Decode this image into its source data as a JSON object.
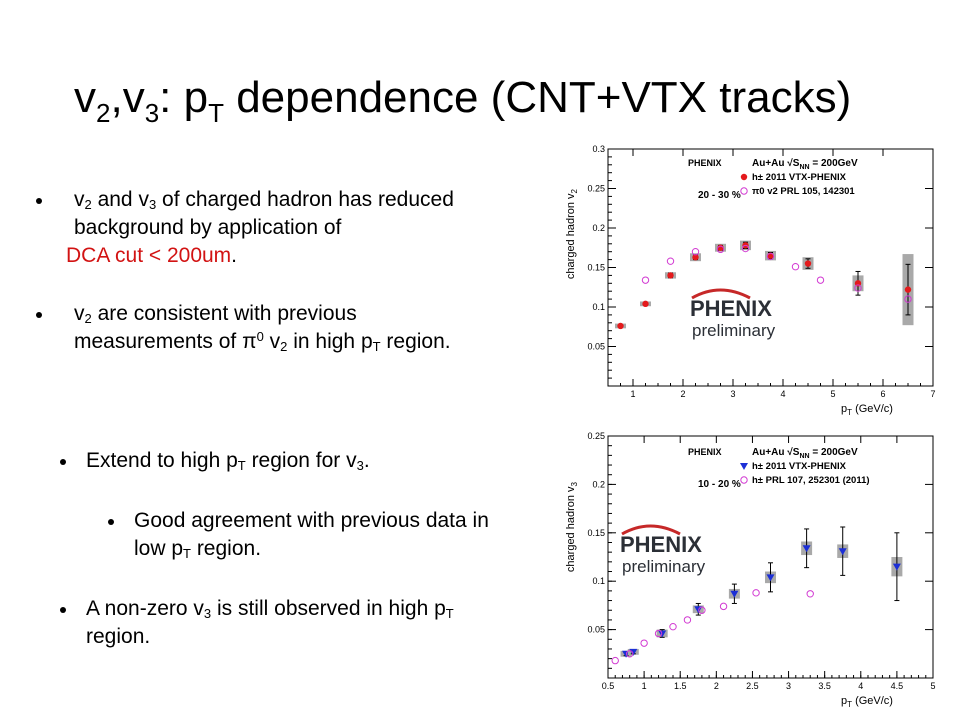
{
  "title": {
    "v_a": "v",
    "sub_a": "2",
    "comma": ",",
    "v_b": "v",
    "sub_b": "3",
    "colon": ": p",
    "sub_T": "T",
    "rest": " dependence (CNT+VTX  tracks)"
  },
  "bullets_top": {
    "b1": {
      "v": "v",
      "s1": "2",
      "t1": " and v",
      "s2": "3",
      "t2": " of charged hadron has reduced",
      "l2": "background by application of",
      "l3": "DCA cut < 200um",
      "period": "."
    },
    "b2": {
      "v": "v",
      "s1": "2",
      "t1": " are consistent with previous",
      "t2": "measurements of ",
      "pi": "π",
      "sup": "0",
      "t3": " v",
      "s2": "2",
      "t4": " in high p",
      "s3": "T",
      "t5": " region."
    }
  },
  "bullets_bottom": {
    "b3": {
      "t1": "Extend to high p",
      "s1": "T",
      "t2": " region for v",
      "s2": "3",
      "t3": "."
    },
    "b4": {
      "l1": "Good agreement with previous data in",
      "t1": "low p",
      "s1": "T",
      "t2": " region."
    },
    "b5": {
      "t1": "A non-zero v",
      "s1": "3",
      "t2": " is still observed in high p",
      "s2": "T",
      "l2": "region."
    }
  },
  "colors": {
    "red": "#e41a1c",
    "blue": "#1c2fd6",
    "magenta": "#d23ad2",
    "box": "#a9a9a9",
    "logo_red": "#c62828",
    "logo_dark": "#2b2f36",
    "text_red": "#d21313"
  },
  "chart_data": [
    {
      "type": "scatter",
      "xlabel": "p_T (GeV/c)",
      "ylabel": "charged hadron v_2",
      "xlim": [
        0.5,
        7
      ],
      "ylim": [
        0,
        0.3
      ],
      "xticks": [
        "1",
        "2",
        "3",
        "4",
        "5",
        "6",
        "7"
      ],
      "yticks": [
        "0.05",
        "0.1",
        "0.15",
        "0.2",
        "0.25",
        "0.3"
      ],
      "brand": "PHENIX",
      "logo": {
        "word": "PHENIX",
        "sub": "preliminary"
      },
      "legend_header": "Au+Au √S",
      "legend_header_sub": "NN",
      "legend_header_tail": " = 200GeV",
      "legend_centrality": "20 - 30 %",
      "series": [
        {
          "name": "h± 2011 VTX-PHENIX",
          "marker": "filled-circle",
          "x": [
            0.75,
            1.25,
            1.75,
            2.25,
            2.75,
            3.25,
            3.75,
            4.5,
            5.5,
            6.5
          ],
          "y": [
            0.076,
            0.104,
            0.14,
            0.163,
            0.175,
            0.178,
            0.165,
            0.155,
            0.13,
            0.122
          ],
          "err": [
            0.002,
            0.002,
            0.003,
            0.003,
            0.003,
            0.004,
            0.004,
            0.006,
            0.015,
            0.032
          ],
          "sys": [
            0.003,
            0.003,
            0.004,
            0.005,
            0.005,
            0.006,
            0.006,
            0.008,
            0.01,
            0.045
          ]
        },
        {
          "name": "π0 v2 PRL 105, 142301",
          "marker": "open-circle",
          "x": [
            1.25,
            1.75,
            2.25,
            2.75,
            3.25,
            3.75,
            4.25,
            4.75,
            5.5,
            6.5
          ],
          "y": [
            0.134,
            0.158,
            0.17,
            0.173,
            0.174,
            0.164,
            0.151,
            0.134,
            0.124,
            0.11
          ]
        }
      ]
    },
    {
      "type": "scatter",
      "xlabel": "p_T (GeV/c)",
      "ylabel": "charged hadron v_3",
      "xlim": [
        0.5,
        5
      ],
      "ylim": [
        0,
        0.25
      ],
      "xticks": [
        "0.5",
        "1",
        "1.5",
        "2",
        "2.5",
        "3",
        "3.5",
        "4",
        "4.5",
        "5"
      ],
      "yticks": [
        "0.05",
        "0.1",
        "0.15",
        "0.2",
        "0.25"
      ],
      "brand": "PHENIX",
      "logo": {
        "word": "PHENIX",
        "sub": "preliminary"
      },
      "legend_header": "Au+Au √S",
      "legend_header_sub": "NN",
      "legend_header_tail": " = 200GeV",
      "legend_centrality": "10 - 20 %",
      "series": [
        {
          "name": "h± 2011 VTX-PHENIX",
          "marker": "filled-triangle",
          "x": [
            0.75,
            0.85,
            1.25,
            1.75,
            2.25,
            2.75,
            3.25,
            3.75,
            4.5
          ],
          "y": [
            0.025,
            0.027,
            0.046,
            0.071,
            0.087,
            0.104,
            0.134,
            0.131,
            0.115
          ],
          "err": [
            0.002,
            0.002,
            0.004,
            0.006,
            0.01,
            0.015,
            0.02,
            0.025,
            0.035
          ],
          "sys": [
            0.003,
            0.003,
            0.004,
            0.004,
            0.005,
            0.006,
            0.007,
            0.007,
            0.01
          ]
        },
        {
          "name": "h± PRL 107, 252301 (2011)",
          "marker": "open-circle",
          "x": [
            0.6,
            0.8,
            1.0,
            1.2,
            1.4,
            1.6,
            1.8,
            2.1,
            2.55,
            3.3
          ],
          "y": [
            0.018,
            0.025,
            0.036,
            0.046,
            0.053,
            0.06,
            0.07,
            0.074,
            0.088,
            0.087
          ]
        }
      ]
    }
  ]
}
